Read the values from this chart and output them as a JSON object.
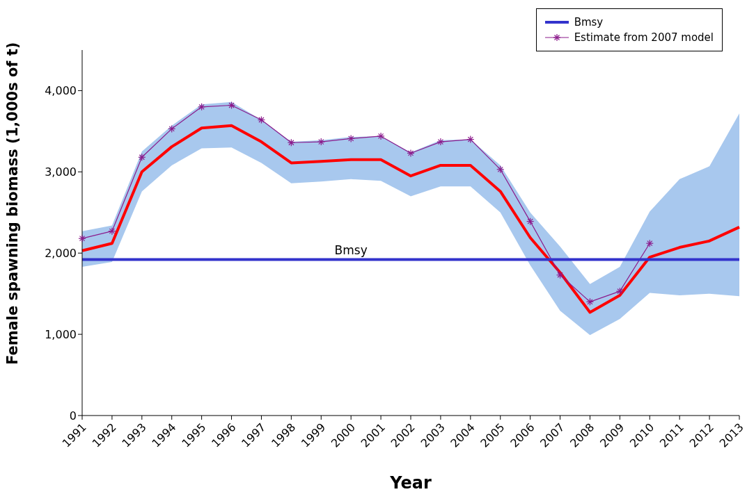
{
  "chart_data": {
    "type": "line",
    "xlabel": "Year",
    "ylabel": "Female spawning biomass (1,000s of t)",
    "categories": [
      "1991",
      "1992",
      "1993",
      "1994",
      "1995",
      "1996",
      "1997",
      "1998",
      "1999",
      "2000",
      "2001",
      "2002",
      "2003",
      "2004",
      "2005",
      "2006",
      "2007",
      "2008",
      "2009",
      "2010",
      "2011",
      "2012",
      "2013"
    ],
    "series": [
      {
        "name": "Bmsy",
        "color": "#3333cc",
        "marker": "none",
        "values": [
          1920,
          1920,
          1920,
          1920,
          1920,
          1920,
          1920,
          1920,
          1920,
          1920,
          1920,
          1920,
          1920,
          1920,
          1920,
          1920,
          1920,
          1920,
          1920,
          1920,
          1920,
          1920,
          1920
        ]
      },
      {
        "name": "Estimate from 2007 model",
        "color": "#8b1a8b",
        "marker": "cross",
        "values": [
          2180,
          2270,
          3180,
          3530,
          3800,
          3820,
          3640,
          3360,
          3370,
          3410,
          3440,
          3230,
          3370,
          3400,
          3030,
          2390,
          1730,
          1400,
          1530,
          2120,
          null,
          null,
          null
        ]
      },
      {
        "color": "#ff0000",
        "marker": "none",
        "values": [
          2030,
          2120,
          3000,
          3310,
          3540,
          3570,
          3370,
          3110,
          3130,
          3150,
          3150,
          2950,
          3080,
          3080,
          2760,
          2190,
          1760,
          1270,
          1480,
          1950,
          2070,
          2150,
          2320
        ],
        "lower": [
          1830,
          1890,
          2760,
          3080,
          3290,
          3300,
          3110,
          2860,
          2880,
          2910,
          2890,
          2700,
          2820,
          2820,
          2500,
          1850,
          1290,
          990,
          1190,
          1510,
          1480,
          1500,
          1470
        ],
        "upper": [
          2270,
          2340,
          3250,
          3570,
          3830,
          3860,
          3640,
          3370,
          3390,
          3430,
          3440,
          3240,
          3390,
          3400,
          3080,
          2500,
          2080,
          1620,
          1830,
          2510,
          2910,
          3070,
          3720
        ]
      }
    ],
    "annotations": [
      {
        "text": "Bmsy",
        "x": "2000",
        "y": 1920
      }
    ],
    "ylim": [
      0,
      4500
    ],
    "yticks": [
      {
        "value": 0,
        "label": "0"
      },
      {
        "value": 1000,
        "label": "1,000"
      },
      {
        "value": 2000,
        "label": "2,000"
      },
      {
        "value": 3000,
        "label": "3,000"
      },
      {
        "value": 4000,
        "label": "4,000"
      }
    ],
    "grid": false,
    "legend": "top right"
  }
}
